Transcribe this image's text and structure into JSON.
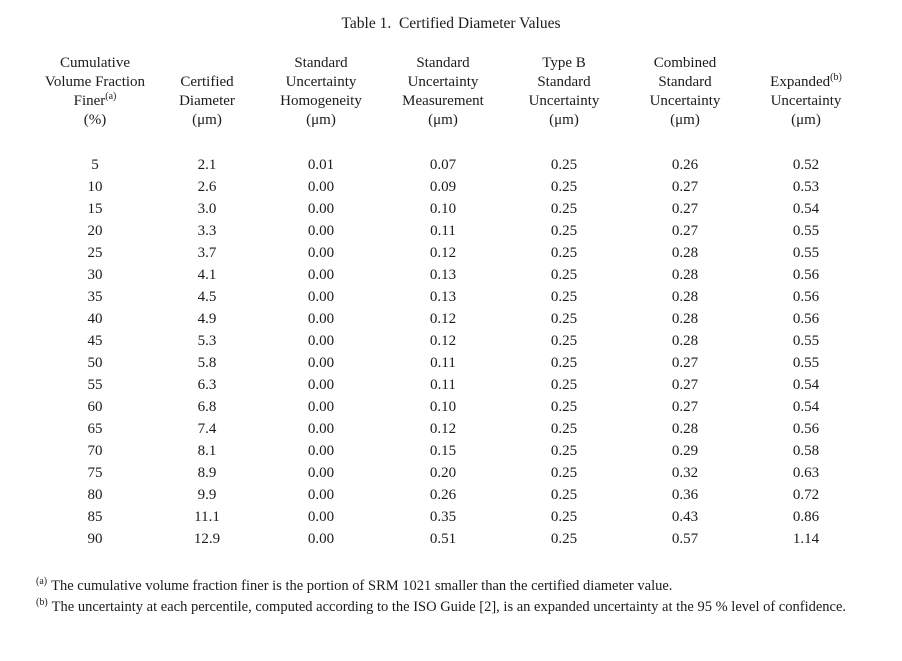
{
  "colors": {
    "background": "#ffffff",
    "text": "#1b1b1b"
  },
  "title": "Table 1.  Certified Diameter Values",
  "table": {
    "header": {
      "col1": {
        "l1": "Cumulative",
        "l2": "Volume Fraction",
        "l3": "Finer",
        "l3sup": "(a)",
        "l4": "(%)"
      },
      "col2": {
        "l1": "Certified",
        "l2": "Diameter",
        "l3": "(μm)"
      },
      "col3": {
        "l1": "Standard",
        "l2": "Uncertainty",
        "l3": "Homogeneity",
        "l4": "(μm)"
      },
      "col4": {
        "l1": "Standard",
        "l2": "Uncertainty",
        "l3": "Measurement",
        "l4": "(μm)"
      },
      "col5": {
        "l1": "Type B",
        "l2": "Standard",
        "l3": "Uncertainty",
        "l4": "(μm)"
      },
      "col6": {
        "l1": "Combined",
        "l2": "Standard",
        "l3": "Uncertainty",
        "l4": "(μm)"
      },
      "col7": {
        "l1": "Expanded",
        "l1sup": "(b)",
        "l2": "Uncertainty",
        "l3": "(μm)"
      }
    },
    "rows": [
      [
        "5",
        "2.1",
        "0.01",
        "0.07",
        "0.25",
        "0.26",
        "0.52"
      ],
      [
        "10",
        "2.6",
        "0.00",
        "0.09",
        "0.25",
        "0.27",
        "0.53"
      ],
      [
        "15",
        "3.0",
        "0.00",
        "0.10",
        "0.25",
        "0.27",
        "0.54"
      ],
      [
        "20",
        "3.3",
        "0.00",
        "0.11",
        "0.25",
        "0.27",
        "0.55"
      ],
      [
        "25",
        "3.7",
        "0.00",
        "0.12",
        "0.25",
        "0.28",
        "0.55"
      ],
      [
        "30",
        "4.1",
        "0.00",
        "0.13",
        "0.25",
        "0.28",
        "0.56"
      ],
      [
        "35",
        "4.5",
        "0.00",
        "0.13",
        "0.25",
        "0.28",
        "0.56"
      ],
      [
        "40",
        "4.9",
        "0.00",
        "0.12",
        "0.25",
        "0.28",
        "0.56"
      ],
      [
        "45",
        "5.3",
        "0.00",
        "0.12",
        "0.25",
        "0.28",
        "0.55"
      ],
      [
        "50",
        "5.8",
        "0.00",
        "0.11",
        "0.25",
        "0.27",
        "0.55"
      ],
      [
        "55",
        "6.3",
        "0.00",
        "0.11",
        "0.25",
        "0.27",
        "0.54"
      ],
      [
        "60",
        "6.8",
        "0.00",
        "0.10",
        "0.25",
        "0.27",
        "0.54"
      ],
      [
        "65",
        "7.4",
        "0.00",
        "0.12",
        "0.25",
        "0.28",
        "0.56"
      ],
      [
        "70",
        "8.1",
        "0.00",
        "0.15",
        "0.25",
        "0.29",
        "0.58"
      ],
      [
        "75",
        "8.9",
        "0.00",
        "0.20",
        "0.25",
        "0.32",
        "0.63"
      ],
      [
        "80",
        "9.9",
        "0.00",
        "0.26",
        "0.25",
        "0.36",
        "0.72"
      ],
      [
        "85",
        "11.1",
        "0.00",
        "0.35",
        "0.25",
        "0.43",
        "0.86"
      ],
      [
        "90",
        "12.9",
        "0.00",
        "0.51",
        "0.25",
        "0.57",
        "1.14"
      ]
    ]
  },
  "footnotes": [
    {
      "marker": "(a)",
      "text": "The cumulative volume fraction finer is the portion of SRM 1021 smaller than the certified diameter value."
    },
    {
      "marker": "(b)",
      "text": "The uncertainty at each percentile, computed according to the ISO Guide [2], is an expanded uncertainty at the 95 % level of confidence."
    }
  ]
}
